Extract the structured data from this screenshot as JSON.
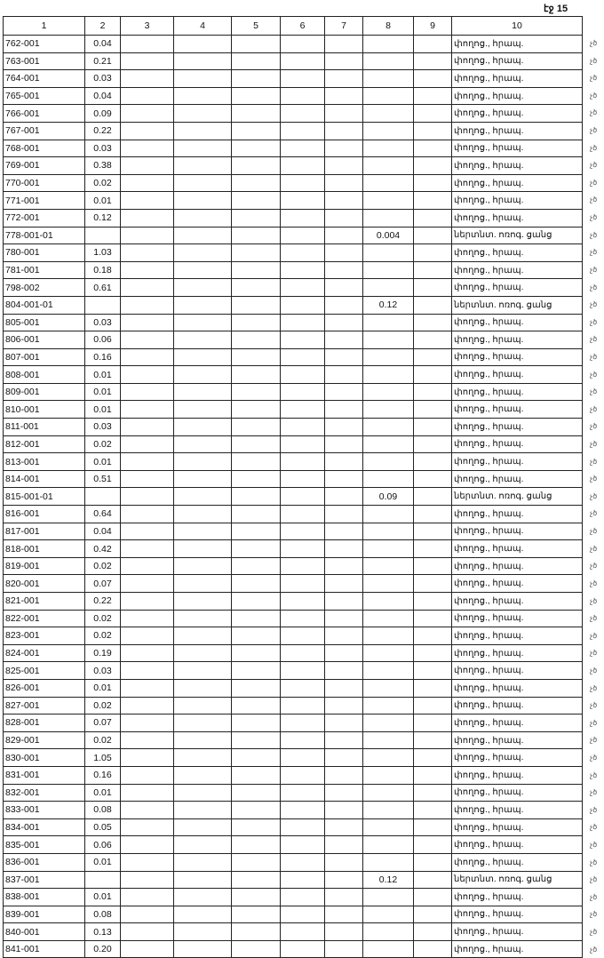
{
  "page_label": "էջ 15",
  "columns": [
    "1",
    "2",
    "3",
    "4",
    "5",
    "6",
    "7",
    "8",
    "9",
    "10"
  ],
  "street_label": "փողոց., հրապ.",
  "irrigation_label": "ներտնտ. ոռոգ. ցանց",
  "margin_mark": "չծ",
  "rows": [
    {
      "id": "762-001",
      "c2": "0.04",
      "c8": "",
      "c10": "փողոց., հրապ."
    },
    {
      "id": "763-001",
      "c2": "0.21",
      "c8": "",
      "c10": "փողոց., հրապ."
    },
    {
      "id": "764-001",
      "c2": "0.03",
      "c8": "",
      "c10": "փողոց., հրապ."
    },
    {
      "id": "765-001",
      "c2": "0.04",
      "c8": "",
      "c10": "փողոց., հրապ."
    },
    {
      "id": "766-001",
      "c2": "0.09",
      "c8": "",
      "c10": "փողոց., հրապ."
    },
    {
      "id": "767-001",
      "c2": "0.22",
      "c8": "",
      "c10": "փողոց., հրապ."
    },
    {
      "id": "768-001",
      "c2": "0.03",
      "c8": "",
      "c10": "փողոց., հրապ."
    },
    {
      "id": "769-001",
      "c2": "0.38",
      "c8": "",
      "c10": "փողոց., հրապ."
    },
    {
      "id": "770-001",
      "c2": "0.02",
      "c8": "",
      "c10": "փողոց., հրապ."
    },
    {
      "id": "771-001",
      "c2": "0.01",
      "c8": "",
      "c10": "փողոց., հրապ."
    },
    {
      "id": "772-001",
      "c2": "0.12",
      "c8": "",
      "c10": "փողոց., հրապ."
    },
    {
      "id": "778-001-01",
      "c2": "",
      "c8": "0.004",
      "c10": "ներտնտ. ոռոգ. ցանց"
    },
    {
      "id": "780-001",
      "c2": "1.03",
      "c8": "",
      "c10": "փողոց., հրապ."
    },
    {
      "id": "781-001",
      "c2": "0.18",
      "c8": "",
      "c10": "փողոց., հրապ."
    },
    {
      "id": "798-002",
      "c2": "0.61",
      "c8": "",
      "c10": "փողոց., հրապ."
    },
    {
      "id": "804-001-01",
      "c2": "",
      "c8": "0.12",
      "c10": "ներտնտ. ոռոգ. ցանց"
    },
    {
      "id": "805-001",
      "c2": "0.03",
      "c8": "",
      "c10": "փողոց., հրապ."
    },
    {
      "id": "806-001",
      "c2": "0.06",
      "c8": "",
      "c10": "փողոց., հրապ."
    },
    {
      "id": "807-001",
      "c2": "0.16",
      "c8": "",
      "c10": "փողոց., հրապ."
    },
    {
      "id": "808-001",
      "c2": "0.01",
      "c8": "",
      "c10": "փողոց., հրապ."
    },
    {
      "id": "809-001",
      "c2": "0.01",
      "c8": "",
      "c10": "փողոց., հրապ."
    },
    {
      "id": "810-001",
      "c2": "0.01",
      "c8": "",
      "c10": "փողոց., հրապ."
    },
    {
      "id": "811-001",
      "c2": "0.03",
      "c8": "",
      "c10": "փողոց., հրապ."
    },
    {
      "id": "812-001",
      "c2": "0.02",
      "c8": "",
      "c10": "փողոց., հրապ."
    },
    {
      "id": "813-001",
      "c2": "0.01",
      "c8": "",
      "c10": "փողոց., հրապ."
    },
    {
      "id": "814-001",
      "c2": "0.51",
      "c8": "",
      "c10": "փողոց., հրապ."
    },
    {
      "id": "815-001-01",
      "c2": "",
      "c8": "0.09",
      "c10": "ներտնտ. ոռոգ. ցանց"
    },
    {
      "id": "816-001",
      "c2": "0.64",
      "c8": "",
      "c10": "փողոց., հրապ."
    },
    {
      "id": "817-001",
      "c2": "0.04",
      "c8": "",
      "c10": "փողոց., հրապ."
    },
    {
      "id": "818-001",
      "c2": "0.42",
      "c8": "",
      "c10": "փողոց., հրապ."
    },
    {
      "id": "819-001",
      "c2": "0.02",
      "c8": "",
      "c10": "փողոց., հրապ."
    },
    {
      "id": "820-001",
      "c2": "0.07",
      "c8": "",
      "c10": "փողոց., հրապ."
    },
    {
      "id": "821-001",
      "c2": "0.22",
      "c8": "",
      "c10": "փողոց., հրապ."
    },
    {
      "id": "822-001",
      "c2": "0.02",
      "c8": "",
      "c10": "փողոց., հրապ."
    },
    {
      "id": "823-001",
      "c2": "0.02",
      "c8": "",
      "c10": "փողոց., հրապ."
    },
    {
      "id": "824-001",
      "c2": "0.19",
      "c8": "",
      "c10": "փողոց., հրապ."
    },
    {
      "id": "825-001",
      "c2": "0.03",
      "c8": "",
      "c10": "փողոց., հրապ."
    },
    {
      "id": "826-001",
      "c2": "0.01",
      "c8": "",
      "c10": "փողոց., հրապ."
    },
    {
      "id": "827-001",
      "c2": "0.02",
      "c8": "",
      "c10": "փողոց., հրապ."
    },
    {
      "id": "828-001",
      "c2": "0.07",
      "c8": "",
      "c10": "փողոց., հրապ."
    },
    {
      "id": "829-001",
      "c2": "0.02",
      "c8": "",
      "c10": "փողոց., հրապ."
    },
    {
      "id": "830-001",
      "c2": "1.05",
      "c8": "",
      "c10": "փողոց., հրապ."
    },
    {
      "id": "831-001",
      "c2": "0.16",
      "c8": "",
      "c10": "փողոց., հրապ."
    },
    {
      "id": "832-001",
      "c2": "0.01",
      "c8": "",
      "c10": "փողոց., հրապ."
    },
    {
      "id": "833-001",
      "c2": "0.08",
      "c8": "",
      "c10": "փողոց., հրապ."
    },
    {
      "id": "834-001",
      "c2": "0.05",
      "c8": "",
      "c10": "փողոց., հրապ."
    },
    {
      "id": "835-001",
      "c2": "0.06",
      "c8": "",
      "c10": "փողոց., հրապ."
    },
    {
      "id": "836-001",
      "c2": "0.01",
      "c8": "",
      "c10": "փողոց., հրապ."
    },
    {
      "id": "837-001",
      "c2": "",
      "c8": "0.12",
      "c10": "ներտնտ. ոռոգ. ցանց"
    },
    {
      "id": "838-001",
      "c2": "0.01",
      "c8": "",
      "c10": "փողոց., հրապ."
    },
    {
      "id": "839-001",
      "c2": "0.08",
      "c8": "",
      "c10": "փողոց., հրապ."
    },
    {
      "id": "840-001",
      "c2": "0.13",
      "c8": "",
      "c10": "փողոց., հրապ."
    },
    {
      "id": "841-001",
      "c2": "0.20",
      "c8": "",
      "c10": "փողոց., հրապ."
    }
  ]
}
